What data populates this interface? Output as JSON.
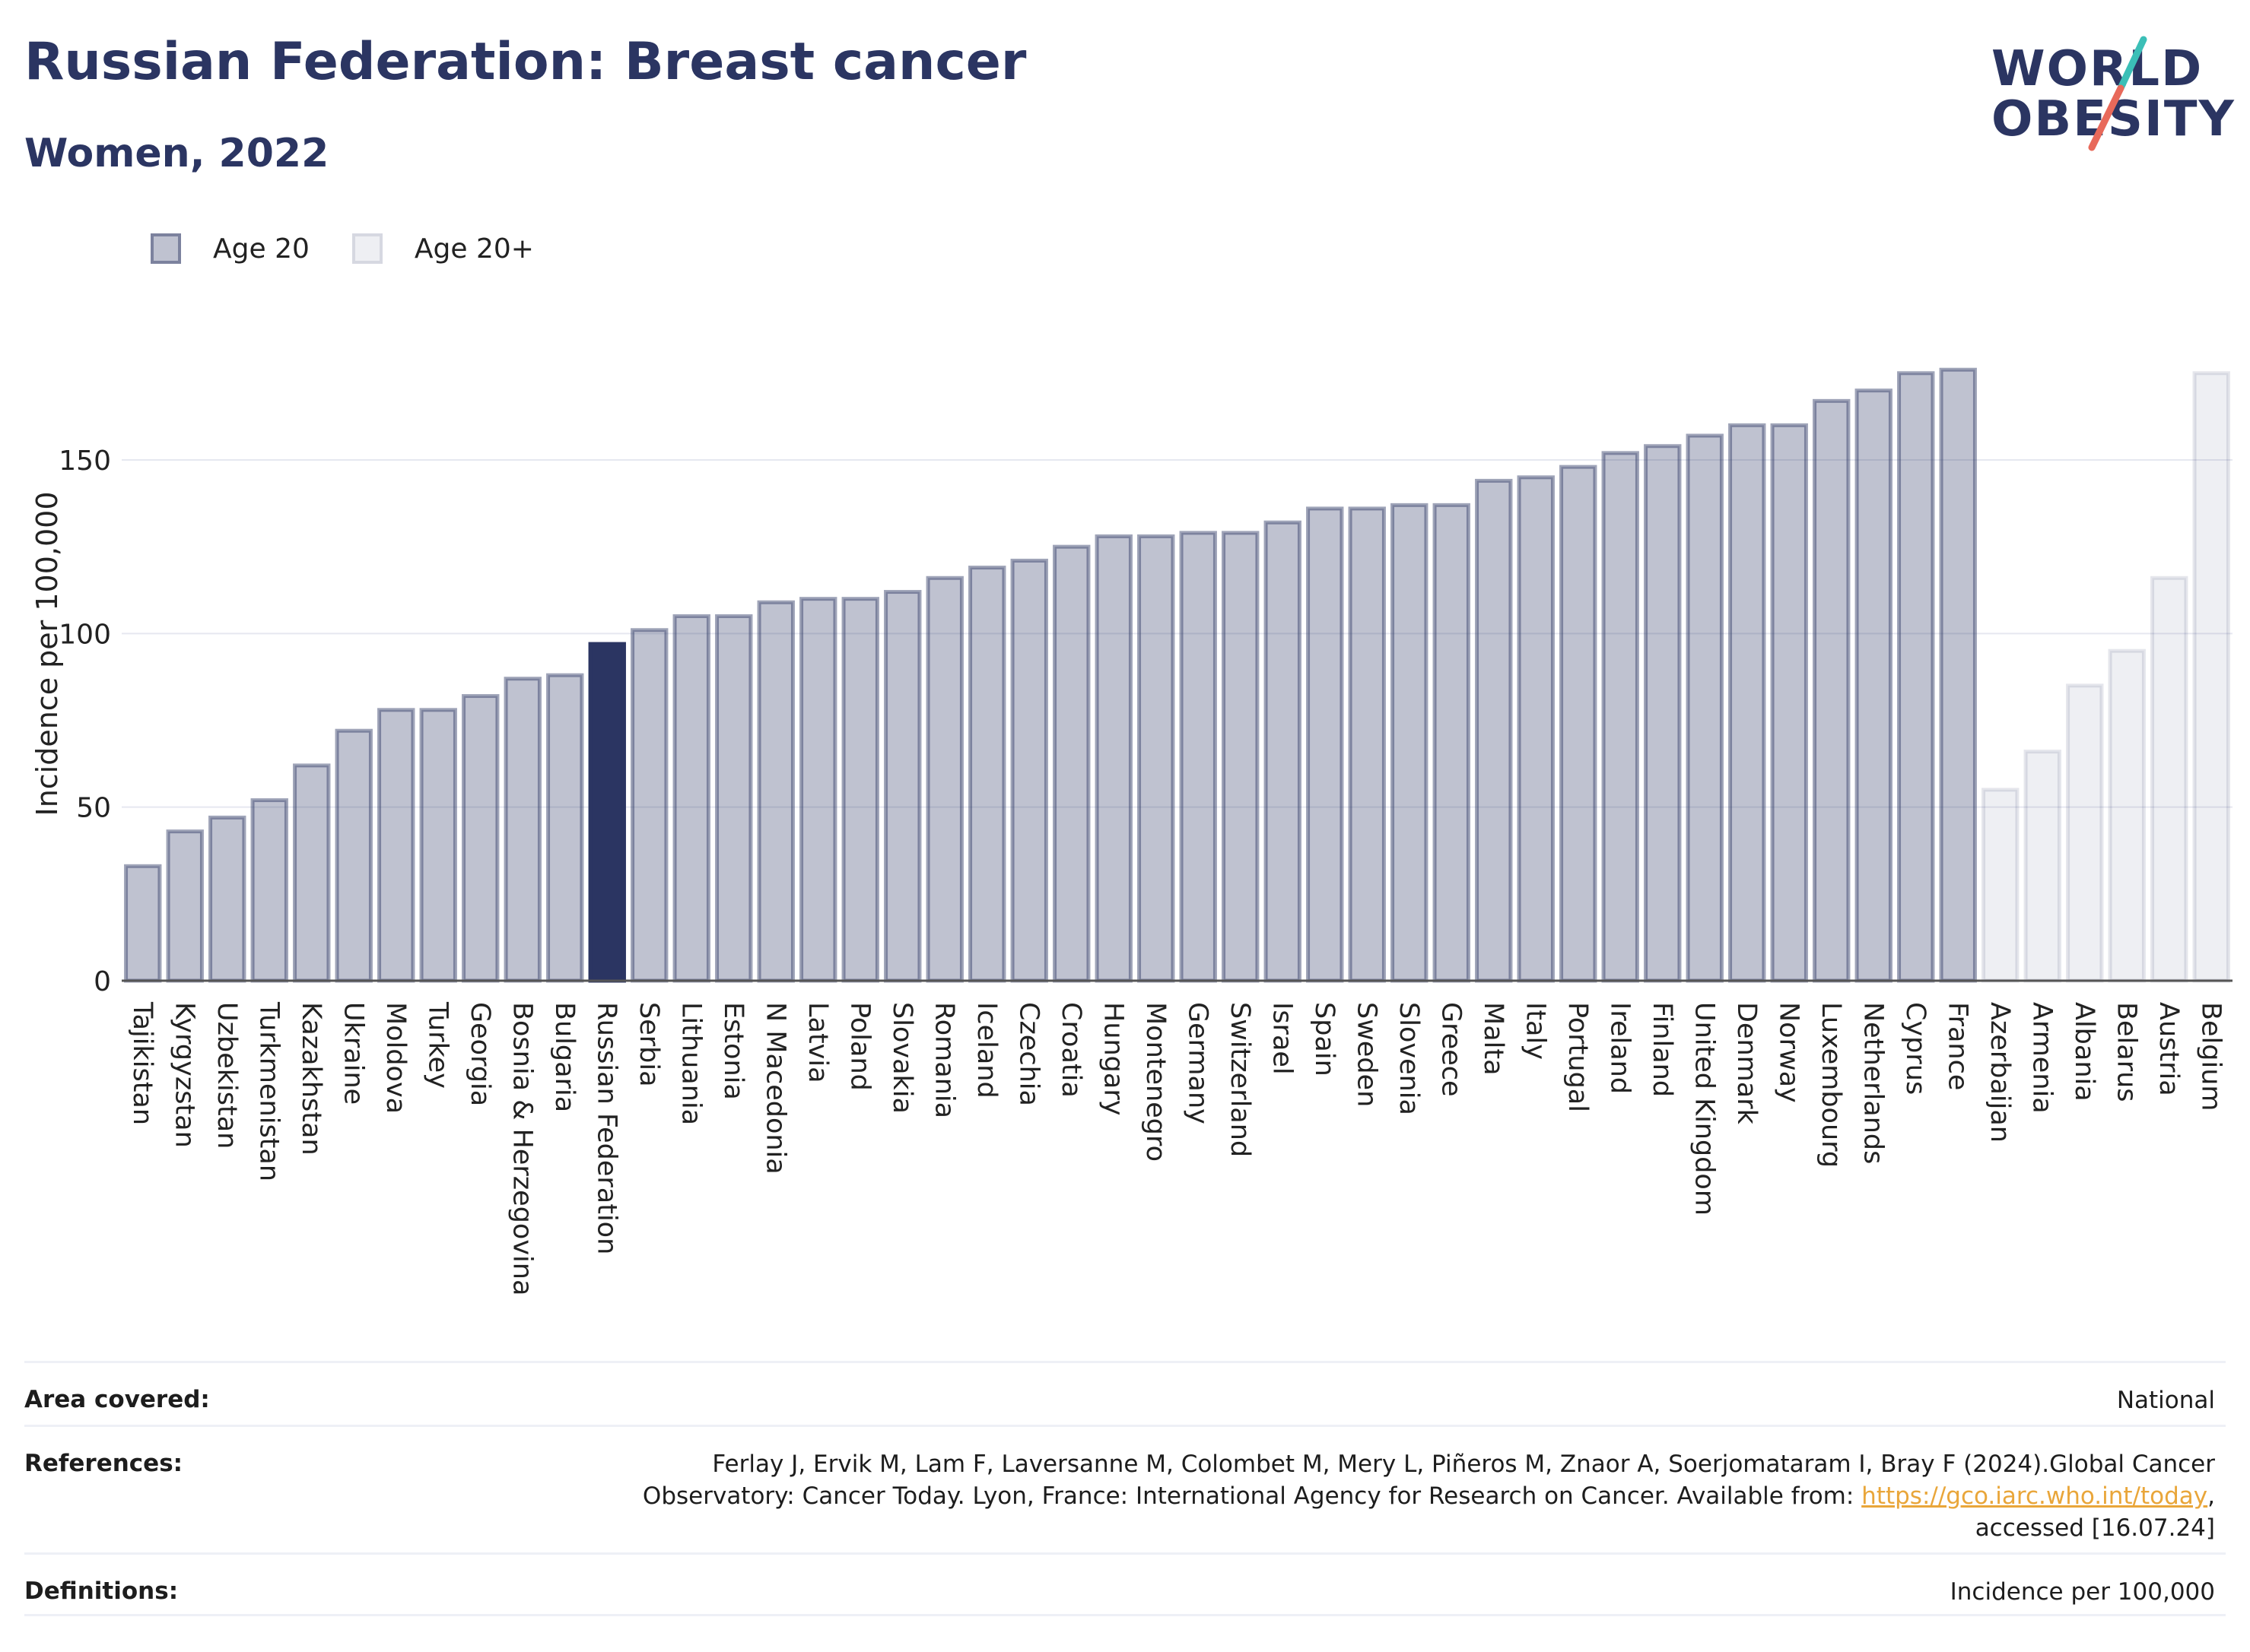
{
  "header": {
    "title": "Russian Federation: Breast cancer",
    "subtitle": "Women, 2022"
  },
  "logo": {
    "line1": "WORLD",
    "line2": "OBESITY"
  },
  "legend": {
    "items": [
      {
        "label": "Age 20"
      },
      {
        "label": "Age 20+"
      }
    ]
  },
  "colors": {
    "highlight": "#2b3562",
    "bar_age20": "rgba(42,53,98,0.30)",
    "bar_age20plus": "rgba(42,53,98,0.08)",
    "link": "#e9a63a"
  },
  "chart_data": {
    "type": "bar",
    "ylabel": "Incidence per 100,000",
    "ylim": [
      0,
      180
    ],
    "yticks": [
      0,
      50,
      100,
      150
    ],
    "grid": true,
    "legend_position": "top-left",
    "highlight": "Russian Federation",
    "categories": [
      "Tajikistan",
      "Kyrgyzstan",
      "Uzbekistan",
      "Turkmenistan",
      "Kazakhstan",
      "Ukraine",
      "Moldova",
      "Turkey",
      "Georgia",
      "Bosnia & Herzegovina",
      "Bulgaria",
      "Russian Federation",
      "Serbia",
      "Lithuania",
      "Estonia",
      "N Macedonia",
      "Latvia",
      "Poland",
      "Slovakia",
      "Romania",
      "Iceland",
      "Czechia",
      "Croatia",
      "Hungary",
      "Montenegro",
      "Germany",
      "Switzerland",
      "Israel",
      "Spain",
      "Sweden",
      "Slovenia",
      "Greece",
      "Malta",
      "Italy",
      "Portugal",
      "Ireland",
      "Finland",
      "United Kingdom",
      "Denmark",
      "Norway",
      "Luxembourg",
      "Netherlands",
      "Cyprus",
      "France",
      "Azerbaijan",
      "Armenia",
      "Albania",
      "Belarus",
      "Austria",
      "Belgium"
    ],
    "values": [
      33,
      43,
      47,
      52,
      62,
      72,
      78,
      78,
      82,
      87,
      88,
      97,
      101,
      105,
      105,
      109,
      110,
      110,
      112,
      116,
      119,
      121,
      125,
      128,
      128,
      129,
      129,
      132,
      136,
      136,
      137,
      137,
      144,
      145,
      148,
      152,
      154,
      157,
      160,
      160,
      167,
      170,
      175,
      176,
      55,
      66,
      85,
      95,
      116,
      175
    ],
    "series": [
      {
        "name": "Age 20",
        "categories": [
          "Tajikistan",
          "Kyrgyzstan",
          "Uzbekistan",
          "Turkmenistan",
          "Kazakhstan",
          "Ukraine",
          "Moldova",
          "Turkey",
          "Georgia",
          "Bosnia & Herzegovina",
          "Bulgaria",
          "Russian Federation",
          "Serbia",
          "Lithuania",
          "Estonia",
          "N Macedonia",
          "Latvia",
          "Poland",
          "Slovakia",
          "Romania",
          "Iceland",
          "Czechia",
          "Croatia",
          "Hungary",
          "Montenegro",
          "Germany",
          "Switzerland",
          "Israel",
          "Spain",
          "Sweden",
          "Slovenia",
          "Greece",
          "Malta",
          "Italy",
          "Portugal",
          "Ireland",
          "Finland",
          "United Kingdom",
          "Denmark",
          "Norway",
          "Luxembourg",
          "Netherlands",
          "Cyprus",
          "France"
        ]
      },
      {
        "name": "Age 20+",
        "categories": [
          "Azerbaijan",
          "Armenia",
          "Albania",
          "Belarus",
          "Austria",
          "Belgium"
        ]
      }
    ]
  },
  "info": {
    "area_label": "Area covered:",
    "area_value": "National",
    "ref_label": "References:",
    "ref_text_1": "Ferlay J, Ervik M, Lam F, Laversanne M, Colombet M, Mery L, Piñeros M, Znaor A, Soerjomataram I, Bray F (2024).Global Cancer",
    "ref_text_2": "Observatory: Cancer Today. Lyon, France: International Agency for Research on Cancer. Available from: ",
    "ref_link": "https://gco.iarc.who.int/today",
    "ref_text_3": ",",
    "ref_text_4": "accessed [16.07.24]",
    "def_label": "Definitions:",
    "def_value": "Incidence per 100,000"
  }
}
